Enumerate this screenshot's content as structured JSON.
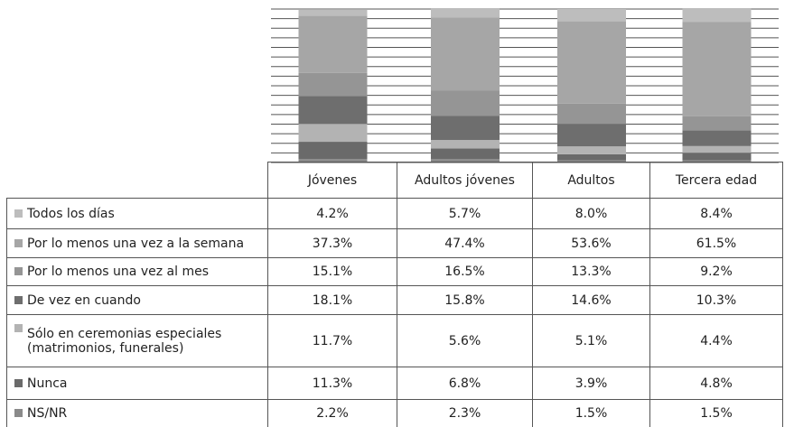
{
  "chart_data": {
    "type": "bar",
    "stacked": true,
    "categories": [
      "Jóvenes",
      "Adultos jóvenes",
      "Adultos",
      "Tercera edad"
    ],
    "ylim": [
      0,
      100
    ],
    "yticks": [
      0,
      6.25,
      12.5,
      18.75,
      25,
      31.25,
      37.5,
      43.75,
      50,
      56.25,
      62.5,
      68.75,
      75,
      81.25,
      87.5,
      93.75,
      100
    ],
    "grid": true,
    "series": [
      {
        "name": "Todos los días",
        "color": "#bdbdbd",
        "values": [
          4.2,
          5.7,
          8.0,
          8.4
        ],
        "value_labels": [
          "4.2%",
          "5.7%",
          "8.0%",
          "8.4%"
        ]
      },
      {
        "name": "Por lo menos una vez a la semana",
        "color": "#a6a6a6",
        "values": [
          37.3,
          47.4,
          53.6,
          61.5
        ],
        "value_labels": [
          "37.3%",
          "47.4%",
          "53.6%",
          "61.5%"
        ]
      },
      {
        "name": "Por lo menos una vez al mes",
        "color": "#959595",
        "values": [
          15.1,
          16.5,
          13.3,
          9.2
        ],
        "value_labels": [
          "15.1%",
          "16.5%",
          "13.3%",
          "9.2%"
        ]
      },
      {
        "name": "De vez en cuando",
        "color": "#6e6e6e",
        "values": [
          18.1,
          15.8,
          14.6,
          10.3
        ],
        "value_labels": [
          "18.1%",
          "15.8%",
          "14.6%",
          "10.3%"
        ]
      },
      {
        "name": "Sólo en ceremonias especiales (matrimonios, funerales)",
        "color": "#b3b3b3",
        "values": [
          11.7,
          5.6,
          5.1,
          4.4
        ],
        "value_labels": [
          "11.7%",
          "5.6%",
          "5.1%",
          "4.4%"
        ]
      },
      {
        "name": "Nunca",
        "color": "#6a6a6a",
        "values": [
          11.3,
          6.8,
          3.9,
          4.8
        ],
        "value_labels": [
          "11.3%",
          "6.8%",
          "3.9%",
          "4.8%"
        ]
      },
      {
        "name": "NS/NR",
        "color": "#8a8a8a",
        "values": [
          2.2,
          2.3,
          1.5,
          1.5
        ],
        "value_labels": [
          "2.2%",
          "2.3%",
          "1.5%",
          "1.5%"
        ]
      }
    ]
  }
}
